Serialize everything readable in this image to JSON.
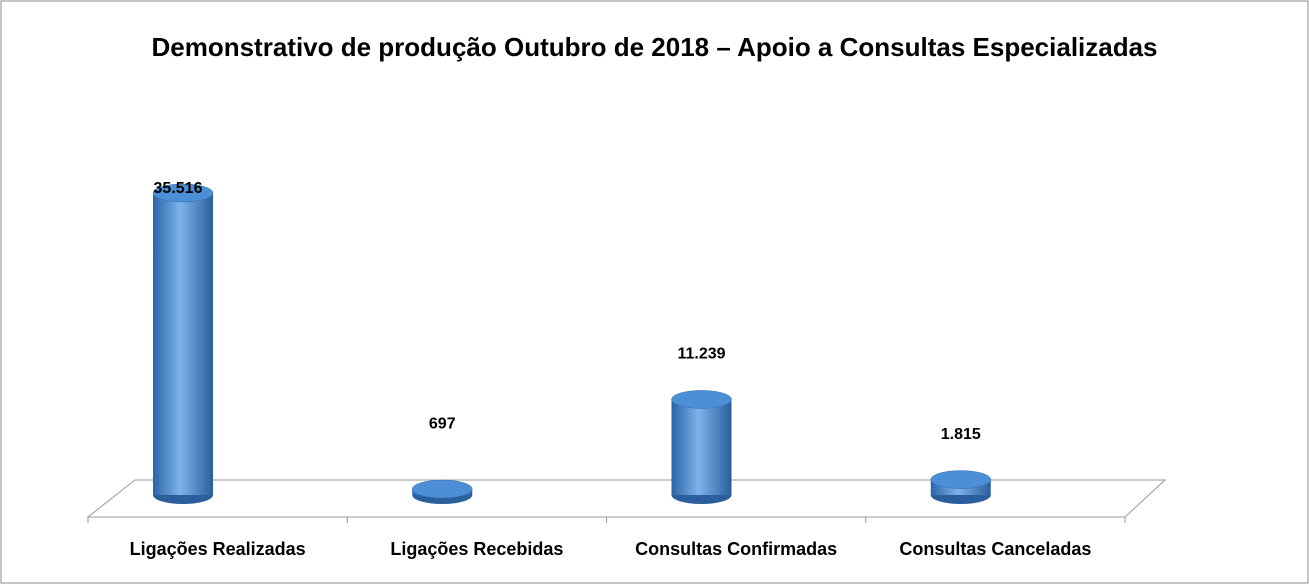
{
  "chart_data": {
    "type": "bar3d",
    "title": "Demonstrativo de produção Outubro de 2018 – Apoio a Consultas Especializadas",
    "categories": [
      "Ligações Realizadas",
      "Ligações Recebidas",
      "Consultas Confirmadas",
      "Consultas Canceladas"
    ],
    "values": [
      35516,
      697,
      11239,
      1815
    ],
    "value_labels": [
      "35.516",
      "697",
      "11.239",
      "1.815"
    ],
    "color": "#3a7cc6"
  }
}
